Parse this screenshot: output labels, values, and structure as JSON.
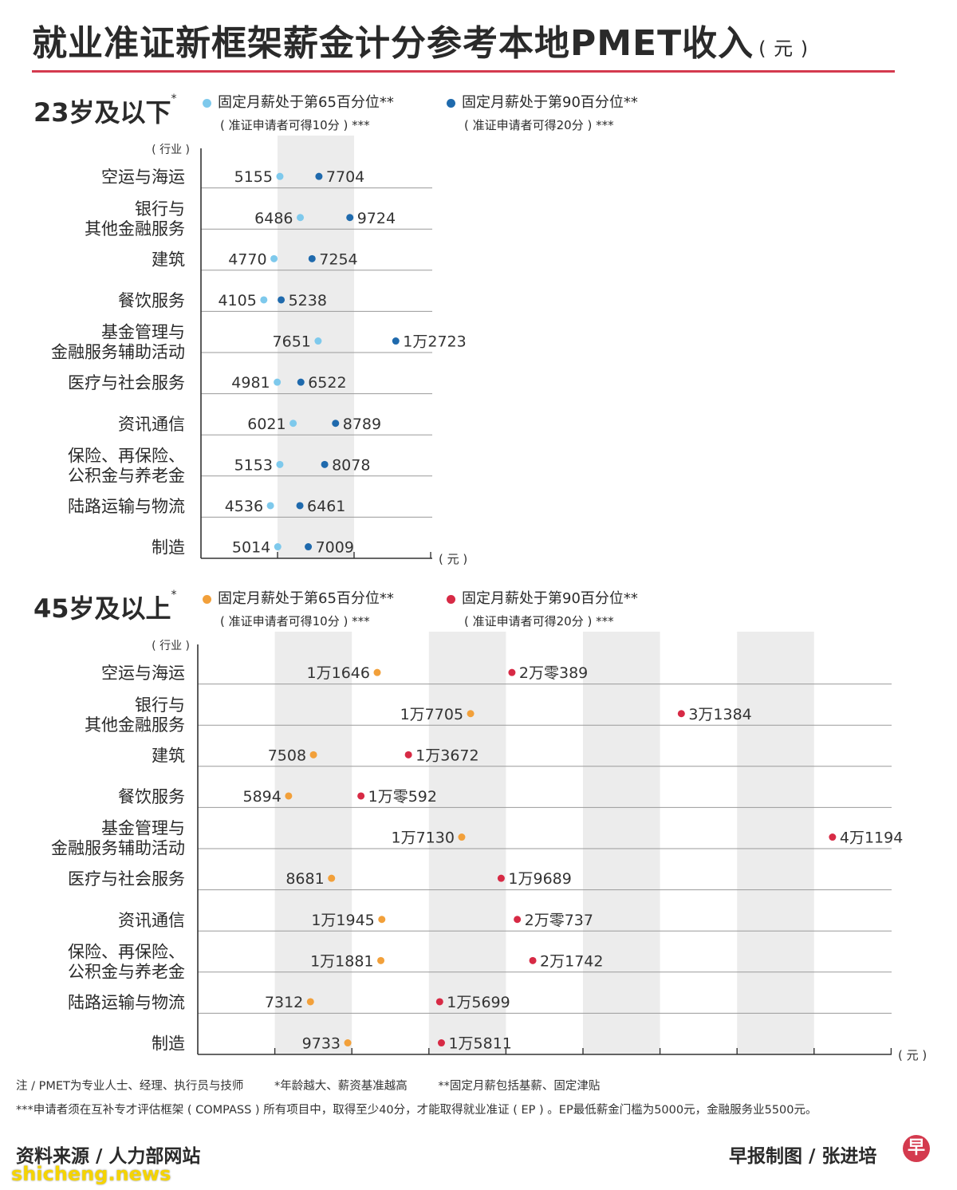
{
  "title": "就业准证新框架薪金计分参考本地PMET收入",
  "title_unit": "( 元 )",
  "industry_header": "( 行业 )",
  "unit_label": "( 元 )",
  "colors": {
    "young_p65": "#7ec9ec",
    "young_p90": "#1f6aad",
    "old_p65": "#f2a03a",
    "old_p90": "#d72a45",
    "accent": "#d43a4e",
    "band": "#ececec"
  },
  "sections": [
    {
      "title": "23岁及以下",
      "title_mark": "*",
      "legend": [
        {
          "label": "固定月薪处于第65百分位**",
          "sub": "( 准证申请者可得10分 ) ***",
          "color": "#7ec9ec"
        },
        {
          "label": "固定月薪处于第90百分位**",
          "sub": "( 准证申请者可得20分 ) ***",
          "color": "#1f6aad"
        }
      ]
    },
    {
      "title": "45岁及以上",
      "title_mark": "*",
      "legend": [
        {
          "label": "固定月薪处于第65百分位**",
          "sub": "( 准证申请者可得10分 ) ***",
          "color": "#f2a03a"
        },
        {
          "label": "固定月薪处于第90百分位**",
          "sub": "( 准证申请者可得20分 ) ***",
          "color": "#d72a45"
        }
      ]
    }
  ],
  "chart_data": [
    {
      "type": "dumbbell",
      "title": "23岁及以下",
      "unit": "元",
      "categories": [
        [
          "空运与海运"
        ],
        [
          "银行与",
          "其他金融服务"
        ],
        [
          "建筑"
        ],
        [
          "餐饮服务"
        ],
        [
          "基金管理与",
          "金融服务辅助活动"
        ],
        [
          "医疗与社会服务"
        ],
        [
          "资讯通信"
        ],
        [
          "保险、再保险、",
          "公积金与养老金"
        ],
        [
          "陆路运输与物流"
        ],
        [
          "制造"
        ]
      ],
      "series": [
        {
          "name": "固定月薪处于第65百分位",
          "values": [
            5155,
            6486,
            4770,
            4105,
            7651,
            4981,
            6021,
            5153,
            4536,
            5014
          ],
          "labels": [
            "5155",
            "6486",
            "4770",
            "4105",
            "7651",
            "4981",
            "6021",
            "5153",
            "4536",
            "5014"
          ]
        },
        {
          "name": "固定月薪处于第90百分位",
          "values": [
            7704,
            9724,
            7254,
            5238,
            12723,
            6522,
            8789,
            8078,
            6461,
            7009
          ],
          "labels": [
            "7704",
            "9724",
            "7254",
            "5238",
            "1万2723",
            "6522",
            "8789",
            "8078",
            "6461",
            "7009"
          ]
        }
      ],
      "xlim": [
        0,
        15000
      ]
    },
    {
      "type": "dumbbell",
      "title": "45岁及以上",
      "unit": "元",
      "categories": [
        [
          "空运与海运"
        ],
        [
          "银行与",
          "其他金融服务"
        ],
        [
          "建筑"
        ],
        [
          "餐饮服务"
        ],
        [
          "基金管理与",
          "金融服务辅助活动"
        ],
        [
          "医疗与社会服务"
        ],
        [
          "资讯通信"
        ],
        [
          "保险、再保险、",
          "公积金与养老金"
        ],
        [
          "陆路运输与物流"
        ],
        [
          "制造"
        ]
      ],
      "series": [
        {
          "name": "固定月薪处于第65百分位",
          "values": [
            11646,
            17705,
            7508,
            5894,
            17130,
            8681,
            11945,
            11881,
            7312,
            9733
          ],
          "labels": [
            "1万1646",
            "1万7705",
            "7508",
            "5894",
            "1万7130",
            "8681",
            "1万1945",
            "1万1881",
            "7312",
            "9733"
          ]
        },
        {
          "name": "固定月薪处于第90百分位",
          "values": [
            20389,
            31384,
            13672,
            10592,
            41194,
            19689,
            20737,
            21742,
            15699,
            15811
          ],
          "labels": [
            "2万零389",
            "3万1384",
            "1万3672",
            "1万零592",
            "4万1194",
            "1万9689",
            "2万零737",
            "2万1742",
            "1万5699",
            "1万5811"
          ]
        }
      ],
      "xlim": [
        0,
        45000
      ]
    }
  ],
  "notes": {
    "line1_a": "注 / PMET为专业人士、经理、执行员与技师",
    "line1_b": "*年龄越大、薪资基准越高",
    "line1_c": "**固定月薪包括基薪、固定津贴",
    "line2": "***申请者须在互补专才评估框架 ( COMPASS ) 所有项目中，取得至少40分，才能取得就业准证 ( EP ) 。EP最低薪金门槛为5000元，金融服务业5500元。"
  },
  "footer": {
    "source": "资料来源 / 人力部网站",
    "credit": "早报制图 / 张进培",
    "logo_glyph": "早",
    "watermark": "shicheng.news"
  }
}
